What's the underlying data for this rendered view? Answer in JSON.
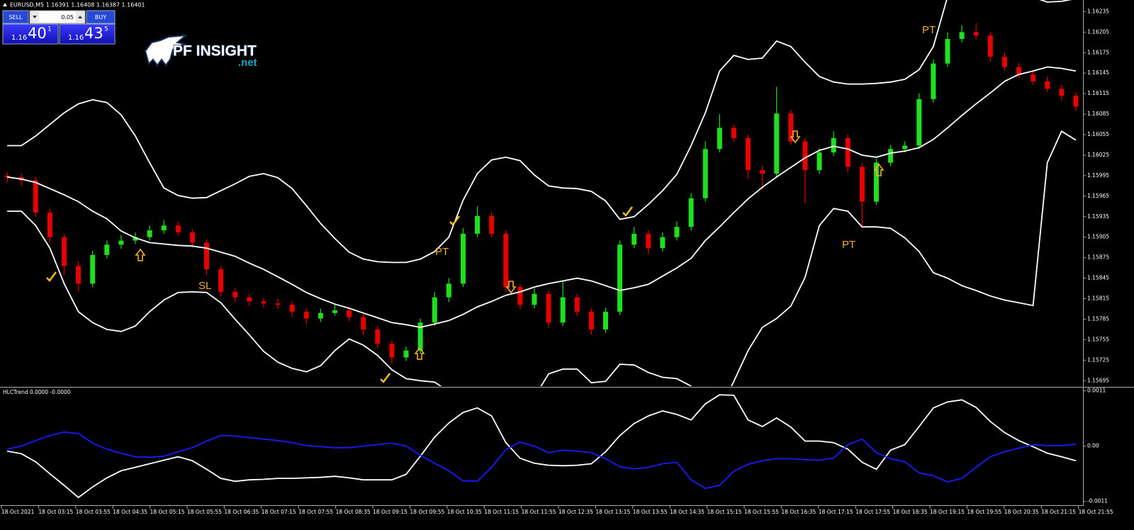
{
  "header": {
    "symbol_line": "EURUSD,M5  1.16391 1.16408 1.16387 1.16401"
  },
  "trade_panel": {
    "sell": "SELL",
    "lot": "0.05",
    "buy": "BUY",
    "sell_price": {
      "big": "1.16",
      "main": "40",
      "sup": "1"
    },
    "buy_price": {
      "big": "1.16",
      "main": "43",
      "sup": "5"
    }
  },
  "logo": {
    "name": "PF INSIGHT",
    "domain": ".net"
  },
  "annotations": [
    "PT",
    "PT",
    "PT",
    "SL"
  ],
  "time_axis": {
    "labels": [
      "18 Oct 2021",
      "18 Oct 03:15",
      "18 Oct 03:55",
      "18 Oct 04:35",
      "18 Oct 05:15",
      "18 Oct 05:55",
      "18 Oct 06:35",
      "18 Oct 07:15",
      "18 Oct 07:55",
      "18 Oct 08:35",
      "18 Oct 09:15",
      "18 Oct 09:55",
      "18 Oct 10:35",
      "18 Oct 11:15",
      "18 Oct 11:55",
      "18 Oct 12:35",
      "18 Oct 13:15",
      "18 Oct 13:55",
      "18 Oct 14:35",
      "18 Oct 15:15",
      "18 Oct 15:55",
      "18 Oct 16:35",
      "18 Oct 17:15",
      "18 Oct 17:55",
      "18 Oct 18:35",
      "18 Oct 19:15",
      "18 Oct 19:55",
      "18 Oct 20:35",
      "18 Oct 21:15",
      "18 Oct 21:55"
    ]
  },
  "chart_data": [
    {
      "type": "candlestick",
      "up_color": "#1ee01e",
      "down_color": "#e80000",
      "ylim": [
        1.15687,
        1.16252
      ],
      "yticks": [
        1.16235,
        1.16205,
        1.16175,
        1.16145,
        1.16115,
        1.16085,
        1.16055,
        1.16025,
        1.15995,
        1.15965,
        1.15935,
        1.15905,
        1.15875,
        1.15845,
        1.15815,
        1.15785,
        1.15755,
        1.15725,
        1.15695
      ],
      "candles": [
        [
          1.15995,
          1.16,
          1.15985,
          1.15993
        ],
        [
          1.15993,
          1.15998,
          1.1598,
          1.15988
        ],
        [
          1.15988,
          1.15993,
          1.15935,
          1.15941
        ],
        [
          1.15941,
          1.15946,
          1.15898,
          1.15905
        ],
        [
          1.15905,
          1.1591,
          1.1585,
          1.15863
        ],
        [
          1.15863,
          1.1587,
          1.15825,
          1.15837
        ],
        [
          1.15837,
          1.15885,
          1.15832,
          1.15879
        ],
        [
          1.15879,
          1.159,
          1.15874,
          1.15894
        ],
        [
          1.15894,
          1.15908,
          1.15888,
          1.159
        ],
        [
          1.159,
          1.15912,
          1.15895,
          1.15905
        ],
        [
          1.15905,
          1.15922,
          1.159,
          1.15915
        ],
        [
          1.15915,
          1.1593,
          1.1591,
          1.15922
        ],
        [
          1.15922,
          1.15928,
          1.15907,
          1.15912
        ],
        [
          1.15912,
          1.15917,
          1.1589,
          1.15897
        ],
        [
          1.15897,
          1.15902,
          1.1585,
          1.15858
        ],
        [
          1.15858,
          1.15863,
          1.15818,
          1.15825
        ],
        [
          1.15825,
          1.1583,
          1.1581,
          1.15817
        ],
        [
          1.15817,
          1.15822,
          1.15805,
          1.15811
        ],
        [
          1.15811,
          1.15816,
          1.15802,
          1.15808
        ],
        [
          1.15808,
          1.15815,
          1.158,
          1.15806
        ],
        [
          1.15806,
          1.15811,
          1.15788,
          1.15796
        ],
        [
          1.15796,
          1.15801,
          1.15778,
          1.15786
        ],
        [
          1.15786,
          1.158,
          1.15781,
          1.15794
        ],
        [
          1.15794,
          1.15806,
          1.1579,
          1.15798
        ],
        [
          1.15798,
          1.15803,
          1.15782,
          1.15788
        ],
        [
          1.15788,
          1.15793,
          1.15762,
          1.1577
        ],
        [
          1.1577,
          1.15775,
          1.15742,
          1.15749
        ],
        [
          1.15749,
          1.15754,
          1.1572,
          1.15729
        ],
        [
          1.15729,
          1.15745,
          1.15724,
          1.15739
        ],
        [
          1.15739,
          1.15786,
          1.15734,
          1.1578
        ],
        [
          1.1578,
          1.15825,
          1.15775,
          1.15817
        ],
        [
          1.15817,
          1.15845,
          1.1581,
          1.15837
        ],
        [
          1.15837,
          1.15918,
          1.15832,
          1.1591
        ],
        [
          1.1591,
          1.1595,
          1.15905,
          1.15936
        ],
        [
          1.15936,
          1.15941,
          1.15905,
          1.1591
        ],
        [
          1.1591,
          1.15915,
          1.15825,
          1.15832
        ],
        [
          1.15832,
          1.15837,
          1.158,
          1.15806
        ],
        [
          1.15806,
          1.1583,
          1.15801,
          1.15822
        ],
        [
          1.15822,
          1.15827,
          1.15772,
          1.1578
        ],
        [
          1.1578,
          1.1584,
          1.15775,
          1.15817
        ],
        [
          1.15817,
          1.15822,
          1.1579,
          1.15796
        ],
        [
          1.15796,
          1.15801,
          1.15762,
          1.1577
        ],
        [
          1.1577,
          1.15802,
          1.15765,
          1.15796
        ],
        [
          1.15796,
          1.159,
          1.15791,
          1.15894
        ],
        [
          1.15894,
          1.1592,
          1.15889,
          1.1591
        ],
        [
          1.1591,
          1.15915,
          1.1588,
          1.15889
        ],
        [
          1.15889,
          1.15912,
          1.15884,
          1.15905
        ],
        [
          1.15905,
          1.15928,
          1.159,
          1.1592
        ],
        [
          1.1592,
          1.1597,
          1.15915,
          1.15962
        ],
        [
          1.15962,
          1.16045,
          1.15957,
          1.16034
        ],
        [
          1.16034,
          1.16085,
          1.16029,
          1.16065
        ],
        [
          1.16065,
          1.1607,
          1.16045,
          1.1605
        ],
        [
          1.1605,
          1.16055,
          1.1599,
          1.16003
        ],
        [
          1.16003,
          1.1601,
          1.15975,
          1.15998
        ],
        [
          1.15998,
          1.16125,
          1.15993,
          1.16086
        ],
        [
          1.16086,
          1.16091,
          1.1604,
          1.16045
        ],
        [
          1.16045,
          1.1605,
          1.15955,
          1.16003
        ],
        [
          1.16003,
          1.16035,
          1.15998,
          1.16029
        ],
        [
          1.16029,
          1.1606,
          1.16024,
          1.1605
        ],
        [
          1.1605,
          1.16055,
          1.16,
          1.16008
        ],
        [
          1.16008,
          1.16013,
          1.1592,
          1.15957
        ],
        [
          1.15957,
          1.1602,
          1.15952,
          1.16014
        ],
        [
          1.16014,
          1.1604,
          1.16009,
          1.16034
        ],
        [
          1.16034,
          1.16045,
          1.16029,
          1.16039
        ],
        [
          1.16039,
          1.16115,
          1.16034,
          1.16107
        ],
        [
          1.16107,
          1.16165,
          1.16102,
          1.16159
        ],
        [
          1.16159,
          1.16205,
          1.16154,
          1.16195
        ],
        [
          1.16195,
          1.16215,
          1.1619,
          1.16205
        ],
        [
          1.16205,
          1.16218,
          1.16195,
          1.162
        ],
        [
          1.162,
          1.16205,
          1.16162,
          1.16169
        ],
        [
          1.16169,
          1.16175,
          1.16148,
          1.16154
        ],
        [
          1.16154,
          1.1616,
          1.16138,
          1.16143
        ],
        [
          1.16143,
          1.1615,
          1.16128,
          1.16133
        ],
        [
          1.16133,
          1.1614,
          1.16117,
          1.16122
        ],
        [
          1.16122,
          1.16128,
          1.16105,
          1.16112
        ],
        [
          1.16112,
          1.16117,
          1.1609,
          1.16096
        ]
      ],
      "bands": [
        {
          "color": "#ffffff",
          "values": [
            1.16039,
            1.16039,
            1.16053,
            1.1607,
            1.16087,
            1.161,
            1.16106,
            1.16102,
            1.16084,
            1.16053,
            1.16014,
            1.15977,
            1.15966,
            1.15962,
            1.15963,
            1.15973,
            1.15983,
            1.15994,
            1.15998,
            1.15992,
            1.15976,
            1.15951,
            1.15925,
            1.15903,
            1.15883,
            1.15873,
            1.15869,
            1.15868,
            1.15868,
            1.15873,
            1.15884,
            1.15905,
            1.15959,
            1.15998,
            1.16018,
            1.16022,
            1.16017,
            1.15996,
            1.1598,
            1.15977,
            1.15976,
            1.15972,
            1.15958,
            1.15931,
            1.15935,
            1.15953,
            1.15973,
            1.15997,
            1.16039,
            1.16087,
            1.16148,
            1.16171,
            1.16165,
            1.16167,
            1.16192,
            1.16184,
            1.16161,
            1.1614,
            1.16132,
            1.16129,
            1.16129,
            1.1613,
            1.16132,
            1.16136,
            1.1615,
            1.16184,
            1.16257,
            1.16273,
            1.16278,
            1.16278,
            1.16273,
            1.16264,
            1.16256,
            1.16249,
            1.1625,
            1.16254
          ]
        },
        {
          "color": "#ffffff",
          "values": [
            1.15993,
            1.1599,
            1.15985,
            1.15976,
            1.15967,
            1.15957,
            1.15943,
            1.15932,
            1.15914,
            1.15904,
            1.15897,
            1.15895,
            1.15893,
            1.15892,
            1.15889,
            1.15883,
            1.15877,
            1.15867,
            1.15858,
            1.15847,
            1.15836,
            1.15824,
            1.15815,
            1.15807,
            1.15801,
            1.15794,
            1.15787,
            1.1578,
            1.15777,
            1.15773,
            1.15778,
            1.15783,
            1.15792,
            1.15803,
            1.15811,
            1.1582,
            1.15825,
            1.15832,
            1.15837,
            1.15841,
            1.15845,
            1.15841,
            1.15834,
            1.15827,
            1.15831,
            1.15836,
            1.15848,
            1.1586,
            1.15874,
            1.159,
            1.1592,
            1.15941,
            1.15961,
            1.15978,
            1.15993,
            1.16007,
            1.16021,
            1.16032,
            1.16038,
            1.16034,
            1.16025,
            1.16022,
            1.16028,
            1.16031,
            1.16036,
            1.16048,
            1.16065,
            1.16083,
            1.161,
            1.16116,
            1.16133,
            1.16143,
            1.16148,
            1.16154,
            1.16152,
            1.16148
          ]
        },
        {
          "color": "#ffffff",
          "values": [
            1.15943,
            1.15943,
            1.15922,
            1.15889,
            1.15837,
            1.15796,
            1.1578,
            1.1577,
            1.15767,
            1.15775,
            1.15796,
            1.15813,
            1.15824,
            1.15825,
            1.15824,
            1.15809,
            1.15785,
            1.15762,
            1.15738,
            1.15722,
            1.15713,
            1.15708,
            1.15717,
            1.15739,
            1.15756,
            1.15747,
            1.15732,
            1.15711,
            1.15698,
            1.15695,
            1.15693,
            1.15679,
            1.15661,
            1.15651,
            1.15649,
            1.15651,
            1.15659,
            1.15671,
            1.15705,
            1.15712,
            1.15712,
            1.15692,
            1.15694,
            1.15719,
            1.15718,
            1.15707,
            1.157,
            1.15698,
            1.15687,
            1.15656,
            1.15651,
            1.15694,
            1.15739,
            1.15773,
            1.15786,
            1.15804,
            1.15846,
            1.15922,
            1.15947,
            1.15943,
            1.1592,
            1.1592,
            1.15918,
            1.15904,
            1.15884,
            1.15853,
            1.15845,
            1.15834,
            1.15827,
            1.15819,
            1.15813,
            1.15809,
            1.15805,
            1.16014,
            1.1606,
            1.16047
          ]
        }
      ]
    },
    {
      "type": "line",
      "title": "HLCTrend 0.0000 -0.0000",
      "ylim": [
        -0.00116,
        0.00115
      ],
      "yticks": [
        0.0011,
        {
          "value": 0,
          "label": "0.00"
        },
        -0.0011
      ],
      "series": [
        {
          "color": "#ffffff",
          "values": [
            -0.0001,
            -0.00015,
            -0.00031,
            -0.00055,
            -0.00078,
            -0.00102,
            -0.00081,
            -0.00063,
            -0.00049,
            -0.00042,
            -0.00035,
            -0.00028,
            -0.00021,
            -0.00029,
            -0.00046,
            -0.00064,
            -0.0007,
            -0.00067,
            -0.00066,
            -0.00064,
            -0.00064,
            -0.00063,
            -0.00062,
            -0.0006,
            -0.00063,
            -0.00067,
            -0.00067,
            -0.00067,
            -0.00056,
            -0.0002,
            0.00018,
            0.00046,
            0.00067,
            0.00076,
            0.0006,
            7e-05,
            -0.00024,
            -0.00034,
            -0.00038,
            -0.00039,
            -0.00038,
            -0.00035,
            -0.00011,
            0.00021,
            0.00045,
            0.0006,
            0.0007,
            0.00063,
            0.00052,
            0.00084,
            0.00102,
            0.00101,
            0.00052,
            0.00039,
            0.00056,
            0.00038,
            0.0001,
            0.0001,
            7e-05,
            -6e-05,
            -0.00032,
            -0.00046,
            -8e-05,
            3e-05,
            0.00039,
            0.00076,
            0.00088,
            0.00092,
            0.00077,
            0.00049,
            0.00027,
            0.00011,
            -1e-05,
            -0.00014,
            -0.00021,
            -0.00029
          ]
        },
        {
          "color": "#1a1aff",
          "values": [
            -6e-05,
            0,
            0.00011,
            0.00021,
            0.00028,
            0.00025,
            6e-05,
            -6e-05,
            -0.00014,
            -0.00021,
            -0.00022,
            -0.0002,
            -0.00011,
            -3e-05,
            0.0001,
            0.00021,
            0.0002,
            0.00017,
            0.00014,
            0.00011,
            7e-05,
            1e-05,
            -1e-05,
            -3e-05,
            -3e-05,
            0,
            3e-05,
            6e-05,
            0,
            -0.00018,
            -0.00034,
            -0.00049,
            -0.00069,
            -0.0007,
            -0.00042,
            -7e-05,
            8e-05,
            0,
            -0.00013,
            -8e-05,
            -0.0001,
            -0.00013,
            -0.00025,
            -0.00041,
            -0.00045,
            -0.00042,
            -0.00035,
            -0.00032,
            -0.00067,
            -0.00084,
            -0.00078,
            -0.0005,
            -0.00036,
            -0.00029,
            -0.00025,
            -0.00025,
            -0.00027,
            -0.00028,
            -0.00024,
            3e-05,
            0.00014,
            -0.00013,
            -0.00025,
            -0.00031,
            -0.00053,
            -0.00059,
            -0.00071,
            -0.00064,
            -0.00042,
            -0.00021,
            -0.00011,
            -4e-05,
            3e-05,
            1e-05,
            1e-05,
            4e-05
          ]
        }
      ]
    }
  ]
}
